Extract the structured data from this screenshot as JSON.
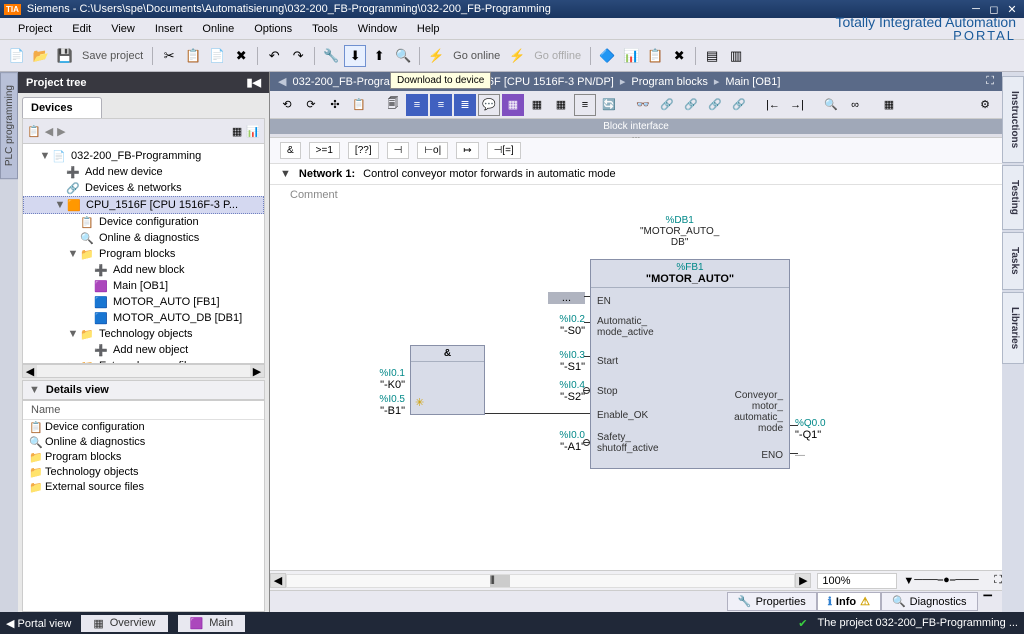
{
  "colors": {
    "titlebar_bg": "#1a3560",
    "accent_orange": "#ff7a00",
    "panel_dark": "#383840",
    "breadcrumb_bg": "#5a6a88",
    "block_bg": "#d8dce8",
    "teal": "#008888",
    "status_bg": "#202838"
  },
  "titlebar": {
    "logo": "TIA",
    "text": "Siemens  -  C:\\Users\\spe\\Documents\\Automatisierung\\032-200_FB-Programming\\032-200_FB-Programming"
  },
  "menu": {
    "items": [
      "Project",
      "Edit",
      "View",
      "Insert",
      "Online",
      "Options",
      "Tools",
      "Window",
      "Help"
    ],
    "brand1": "Totally Integrated Automation",
    "brand2": "PORTAL"
  },
  "toolbar": {
    "save_label": "Save project",
    "go_online": "Go online",
    "go_offline": "Go offline",
    "tooltip": "Download to device"
  },
  "left_tab": "PLC programming",
  "project_tree": {
    "title": "Project tree",
    "tab": "Devices",
    "items": [
      {
        "ind": 1,
        "arrow": "▼",
        "icon": "📄",
        "label": "032-200_FB-Programming"
      },
      {
        "ind": 2,
        "arrow": "",
        "icon": "➕",
        "label": "Add new device"
      },
      {
        "ind": 2,
        "arrow": "",
        "icon": "🔗",
        "label": "Devices & networks"
      },
      {
        "ind": 2,
        "arrow": "▼",
        "icon": "🟧",
        "label": "CPU_1516F [CPU 1516F-3 P...",
        "selected": true
      },
      {
        "ind": 3,
        "arrow": "",
        "icon": "📋",
        "label": "Device configuration"
      },
      {
        "ind": 3,
        "arrow": "",
        "icon": "🔍",
        "label": "Online & diagnostics"
      },
      {
        "ind": 3,
        "arrow": "▼",
        "icon": "📁",
        "label": "Program blocks"
      },
      {
        "ind": 4,
        "arrow": "",
        "icon": "➕",
        "label": "Add new block"
      },
      {
        "ind": 4,
        "arrow": "",
        "icon": "🟪",
        "label": "Main [OB1]"
      },
      {
        "ind": 4,
        "arrow": "",
        "icon": "🟦",
        "label": "MOTOR_AUTO [FB1]"
      },
      {
        "ind": 4,
        "arrow": "",
        "icon": "🟦",
        "label": "MOTOR_AUTO_DB [DB1]"
      },
      {
        "ind": 3,
        "arrow": "▼",
        "icon": "📁",
        "label": "Technology objects"
      },
      {
        "ind": 4,
        "arrow": "",
        "icon": "➕",
        "label": "Add new object"
      },
      {
        "ind": 3,
        "arrow": "▶",
        "icon": "📁",
        "label": "External source files"
      },
      {
        "ind": 3,
        "arrow": "▶",
        "icon": "📁",
        "label": "PLC tags"
      }
    ]
  },
  "details": {
    "title": "Details view",
    "col": "Name",
    "rows": [
      {
        "icon": "📋",
        "label": "Device configuration"
      },
      {
        "icon": "🔍",
        "label": "Online & diagnostics"
      },
      {
        "icon": "📁",
        "label": "Program blocks"
      },
      {
        "icon": "📁",
        "label": "Technology objects"
      },
      {
        "icon": "📁",
        "label": "External source files"
      }
    ]
  },
  "breadcrumb": {
    "parts": [
      "032-200_FB-Programming",
      "CPU_1516F [CPU 1516F-3 PN/DP]",
      "Program blocks",
      "Main [OB1]"
    ]
  },
  "block_interface_label": "Block interface",
  "lad_buttons": [
    "&",
    ">=1",
    "[??]",
    "⊣",
    "⊢o|",
    "↦",
    "⊣[=]"
  ],
  "network": {
    "label": "Network 1:",
    "title": "Control conveyor motor forwards in automatic mode",
    "comment": "Comment"
  },
  "fbd": {
    "db_tag": "%DB1",
    "db_name": "\"MOTOR_AUTO_DB\"",
    "fb_tag": "%FB1",
    "fb_name": "\"MOTOR_AUTO\"",
    "and_block": {
      "label": "&",
      "in1_tag": "%I0.1",
      "in1_name": "\"-K0\"",
      "in2_tag": "%I0.5",
      "in2_name": "\"-B1\""
    },
    "ports_left": [
      {
        "tag": "",
        "name": "...",
        "label": "EN"
      },
      {
        "tag": "%I0.2",
        "name": "\"-S0\"",
        "label": "Automatic_\nmode_active"
      },
      {
        "tag": "%I0.3",
        "name": "\"-S1\"",
        "label": "Start"
      },
      {
        "tag": "%I0.4",
        "name": "\"-S2\"",
        "label": "Stop",
        "neg": true
      },
      {
        "tag": "",
        "name": "",
        "label": "Enable_OK"
      },
      {
        "tag": "%I0.0",
        "name": "\"-A1\"",
        "label": "Safety_\nshutoff_active",
        "neg": true
      }
    ],
    "ports_right": [
      {
        "label": "Conveyor_\nmotor_\nautomatic_\nmode",
        "tag": "%Q0.0",
        "name": "\"-Q1\""
      },
      {
        "label": "ENO",
        "tag": "",
        "name": ""
      }
    ]
  },
  "zoom": "100%",
  "prop_tabs": {
    "properties": "Properties",
    "info": "Info",
    "diagnostics": "Diagnostics"
  },
  "right_tabs": [
    "Instructions",
    "Testing",
    "Tasks",
    "Libraries"
  ],
  "statusbar": {
    "portal": "Portal view",
    "overview": "Overview",
    "main": "Main",
    "msg": "The project 032-200_FB-Programming ..."
  }
}
